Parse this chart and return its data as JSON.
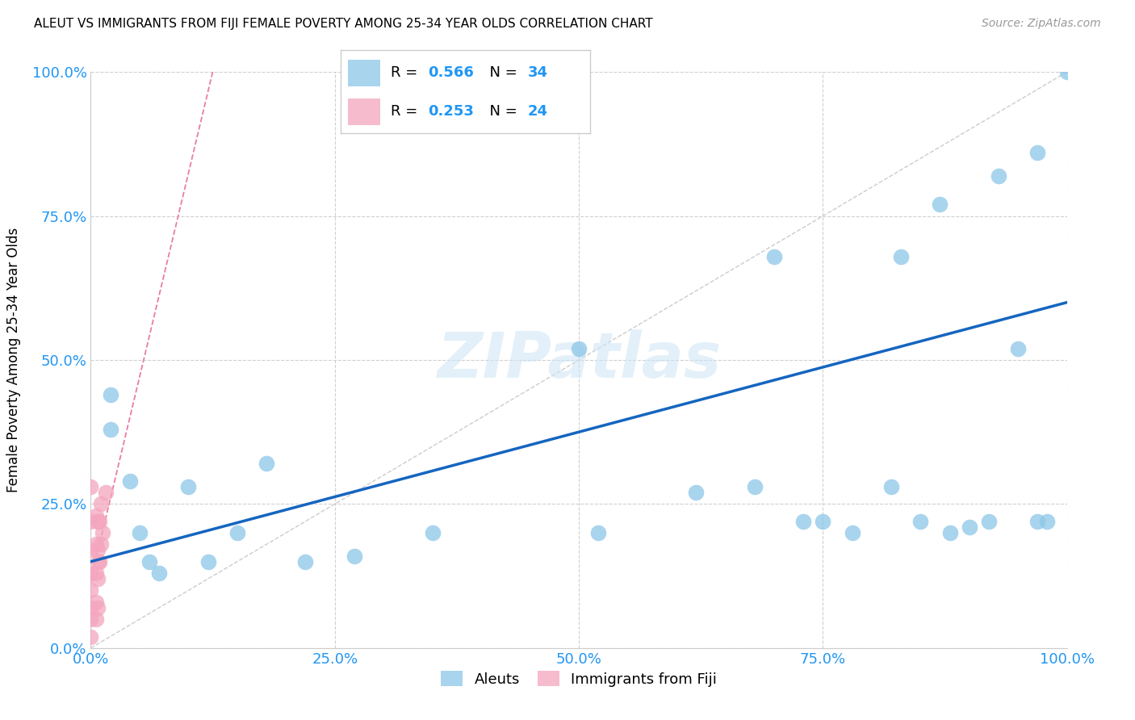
{
  "title": "ALEUT VS IMMIGRANTS FROM FIJI FEMALE POVERTY AMONG 25-34 YEAR OLDS CORRELATION CHART",
  "source": "Source: ZipAtlas.com",
  "ylabel_label": "Female Poverty Among 25-34 Year Olds",
  "xlim": [
    0.0,
    1.0
  ],
  "ylim": [
    0.0,
    1.0
  ],
  "xtick_labels": [
    "0.0%",
    "25.0%",
    "50.0%",
    "75.0%",
    "100.0%"
  ],
  "xtick_vals": [
    0.0,
    0.25,
    0.5,
    0.75,
    1.0
  ],
  "ytick_labels": [
    "0.0%",
    "25.0%",
    "50.0%",
    "75.0%",
    "100.0%"
  ],
  "ytick_vals": [
    0.0,
    0.25,
    0.5,
    0.75,
    1.0
  ],
  "aleuts_color": "#8dc6e8",
  "fiji_color": "#f4a6be",
  "regression_blue_color": "#1565c0",
  "regression_pink_color": "#e87fa0",
  "diagonal_color": "#cccccc",
  "aleuts_x": [
    0.02,
    0.02,
    0.04,
    0.05,
    0.06,
    0.07,
    0.1,
    0.12,
    0.15,
    0.18,
    0.22,
    0.27,
    0.35,
    0.5,
    0.52,
    0.62,
    0.68,
    0.7,
    0.73,
    0.75,
    0.78,
    0.82,
    0.83,
    0.85,
    0.87,
    0.88,
    0.9,
    0.92,
    0.93,
    0.95,
    0.97,
    0.97,
    0.98,
    1.0
  ],
  "aleuts_y": [
    0.44,
    0.38,
    0.29,
    0.2,
    0.15,
    0.13,
    0.28,
    0.15,
    0.2,
    0.32,
    0.15,
    0.16,
    0.2,
    0.52,
    0.2,
    0.27,
    0.28,
    0.68,
    0.22,
    0.22,
    0.2,
    0.28,
    0.68,
    0.22,
    0.77,
    0.2,
    0.21,
    0.22,
    0.82,
    0.52,
    0.22,
    0.86,
    0.22,
    1.0
  ],
  "fiji_x": [
    0.0,
    0.0,
    0.0,
    0.0,
    0.0,
    0.0,
    0.0,
    0.0,
    0.005,
    0.005,
    0.005,
    0.005,
    0.005,
    0.007,
    0.007,
    0.007,
    0.007,
    0.008,
    0.009,
    0.009,
    0.01,
    0.01,
    0.012,
    0.015
  ],
  "fiji_y": [
    0.02,
    0.05,
    0.07,
    0.1,
    0.13,
    0.17,
    0.22,
    0.28,
    0.05,
    0.08,
    0.13,
    0.18,
    0.23,
    0.07,
    0.12,
    0.17,
    0.22,
    0.15,
    0.15,
    0.22,
    0.18,
    0.25,
    0.2,
    0.27
  ],
  "watermark_text": "ZIPatlas",
  "background_color": "#ffffff",
  "grid_color": "#d0d0d0",
  "legend_aleuts_R": "0.566",
  "legend_aleuts_N": "34",
  "legend_fiji_R": "0.253",
  "legend_fiji_N": "24",
  "r_n_color": "#2196F3",
  "legend_label_aleuts": "Aleuts",
  "legend_label_fiji": "Immigrants from Fiji"
}
